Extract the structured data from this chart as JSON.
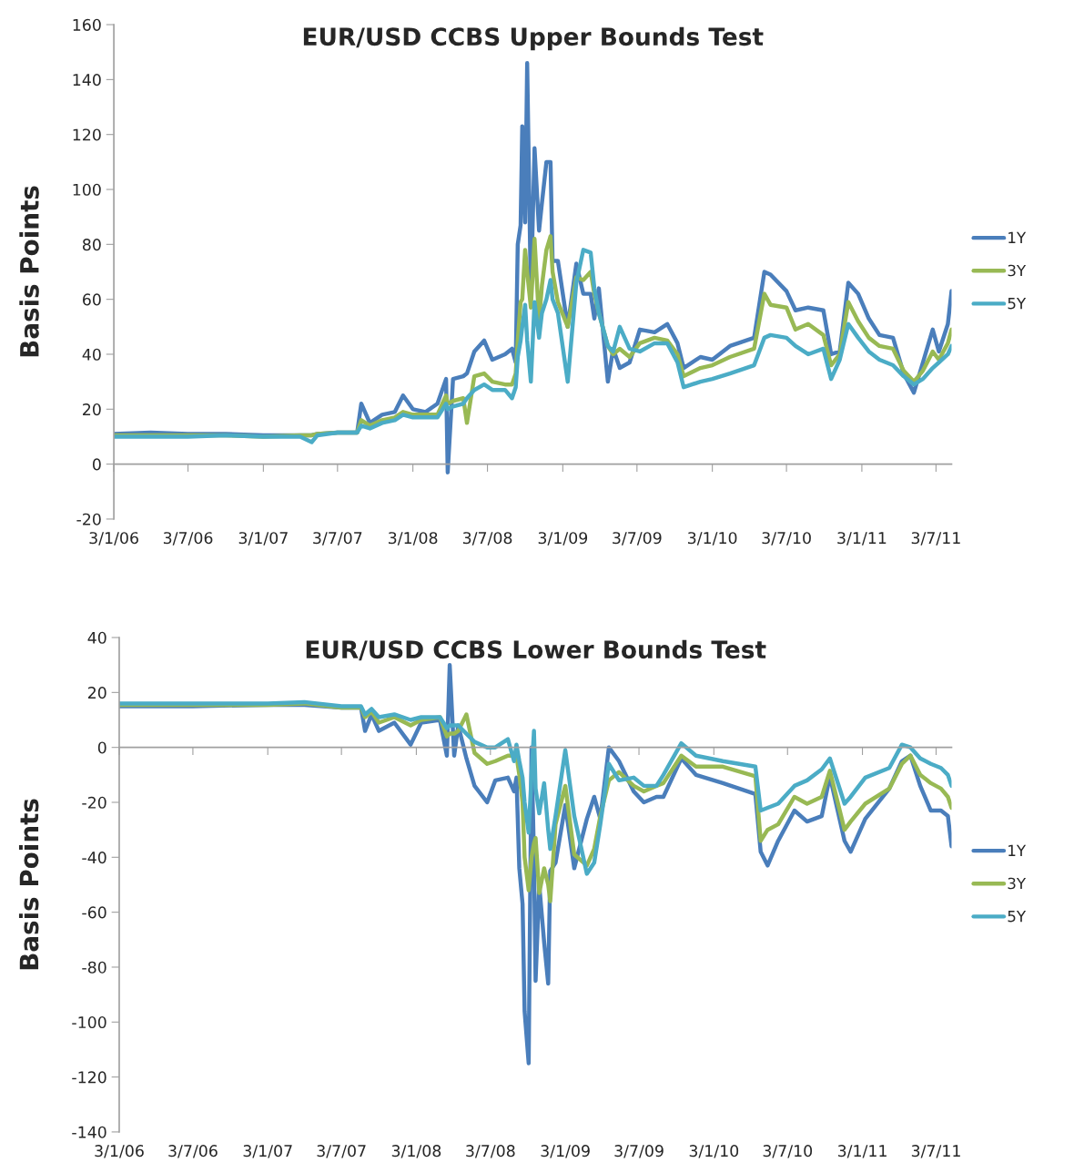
{
  "chart_data": [
    {
      "type": "line",
      "title": "EUR/USD CCBS Upper Bounds Test",
      "ylabel": "Basis Points",
      "legend": "right",
      "x": [
        "2006-01-03",
        "2006-04-03",
        "2006-07-03",
        "2006-10-03",
        "2007-01-03",
        "2007-04-03",
        "2007-05-01",
        "2007-05-15",
        "2007-07-03",
        "2007-08-20",
        "2007-08-30",
        "2007-09-20",
        "2007-10-20",
        "2007-11-20",
        "2007-12-10",
        "2008-01-03",
        "2008-02-03",
        "2008-03-03",
        "2008-03-24",
        "2008-03-28",
        "2008-04-10",
        "2008-05-05",
        "2008-05-14",
        "2008-06-01",
        "2008-06-25",
        "2008-07-15",
        "2008-08-15",
        "2008-09-01",
        "2008-09-10",
        "2008-09-15",
        "2008-09-22",
        "2008-09-26",
        "2008-10-03",
        "2008-10-08",
        "2008-10-17",
        "2008-10-26",
        "2008-11-06",
        "2008-11-13",
        "2008-11-24",
        "2008-12-04",
        "2008-12-09",
        "2008-12-22",
        "2009-01-15",
        "2009-02-05",
        "2009-02-22",
        "2009-03-12",
        "2009-03-21",
        "2009-04-01",
        "2009-04-23",
        "2009-05-06",
        "2009-05-22",
        "2009-06-15",
        "2009-07-10",
        "2009-08-15",
        "2009-09-15",
        "2009-10-10",
        "2009-10-25",
        "2009-12-05",
        "2010-01-03",
        "2010-02-15",
        "2010-04-15",
        "2010-05-10",
        "2010-05-25",
        "2010-07-03",
        "2010-07-25",
        "2010-08-25",
        "2010-10-01",
        "2010-10-20",
        "2010-11-10",
        "2010-12-01",
        "2010-12-25",
        "2011-01-20",
        "2011-02-15",
        "2011-03-20",
        "2011-04-15",
        "2011-05-10",
        "2011-06-01",
        "2011-06-25",
        "2011-07-10",
        "2011-08-01",
        "2011-08-10"
      ],
      "series": [
        {
          "name": "1Y",
          "color": "#4a7ebb",
          "values": [
            11,
            11.5,
            11,
            11,
            10.5,
            10.5,
            10.5,
            11,
            11.5,
            11.5,
            22,
            15,
            18,
            19,
            25,
            20,
            19,
            22,
            31,
            -3,
            31,
            32,
            33,
            41,
            45,
            38,
            40,
            42,
            37,
            80,
            87,
            123,
            88,
            146,
            61,
            115,
            85,
            95,
            110,
            110,
            74,
            74,
            50,
            73,
            62,
            62,
            53,
            64,
            30,
            42,
            35,
            37,
            49,
            48,
            51,
            44,
            35,
            39,
            38,
            43,
            46,
            70,
            69,
            63,
            56,
            57,
            56,
            40,
            41,
            66,
            62,
            53,
            47,
            46,
            33,
            26,
            37,
            49,
            41,
            51,
            63
          ]
        },
        {
          "name": "3Y",
          "color": "#98b954",
          "values": [
            10.5,
            10.5,
            10.5,
            10.5,
            10,
            10.5,
            10.5,
            11,
            11.5,
            11.5,
            16,
            14,
            16,
            17,
            19,
            18,
            18,
            18,
            25,
            22,
            23,
            24,
            15,
            32,
            33,
            30,
            29,
            29,
            33,
            45,
            59,
            60,
            78,
            70,
            57,
            82,
            52,
            65,
            78,
            83,
            70,
            59,
            50,
            68,
            67,
            70,
            62,
            55,
            43,
            40,
            42,
            39,
            44,
            46,
            45,
            40,
            32,
            35,
            36,
            39,
            42,
            62,
            58,
            57,
            49,
            51,
            47,
            36,
            40,
            59,
            52,
            46,
            43,
            42,
            34,
            30,
            34,
            41,
            38,
            44,
            49
          ]
        },
        {
          "name": "5Y",
          "color": "#4bacc6",
          "values": [
            10,
            10,
            10,
            10.5,
            10,
            10,
            8,
            10.5,
            11.5,
            11.5,
            14,
            13,
            15,
            16,
            18,
            17,
            17,
            17,
            22,
            20,
            21,
            22,
            24,
            27,
            29,
            27,
            27,
            24,
            28,
            39,
            45,
            50,
            58,
            45,
            30,
            59,
            46,
            55,
            60,
            67,
            60,
            55,
            30,
            66,
            78,
            77,
            64,
            55,
            43,
            41,
            50,
            42,
            41,
            44,
            44,
            37,
            28,
            30,
            31,
            33,
            36,
            46,
            47,
            46,
            43,
            40,
            42,
            31,
            38,
            51,
            46,
            41,
            38,
            36,
            32,
            29,
            31,
            35,
            37,
            40,
            43
          ]
        }
      ],
      "xlim": [
        "2006-01-03",
        "2011-08-10"
      ],
      "xticks": [
        {
          "value": "2006-01-03",
          "label": "3/1/06"
        },
        {
          "value": "2006-07-03",
          "label": "3/7/06"
        },
        {
          "value": "2007-01-03",
          "label": "3/1/07"
        },
        {
          "value": "2007-07-03",
          "label": "3/7/07"
        },
        {
          "value": "2008-01-03",
          "label": "3/1/08"
        },
        {
          "value": "2008-07-03",
          "label": "3/7/08"
        },
        {
          "value": "2009-01-03",
          "label": "3/1/09"
        },
        {
          "value": "2009-07-03",
          "label": "3/7/09"
        },
        {
          "value": "2010-01-03",
          "label": "3/1/10"
        },
        {
          "value": "2010-07-03",
          "label": "3/7/10"
        },
        {
          "value": "2011-01-03",
          "label": "3/1/11"
        },
        {
          "value": "2011-07-03",
          "label": "3/7/11"
        }
      ],
      "ylim": [
        -20,
        160
      ],
      "yticks": [
        -20,
        0,
        20,
        40,
        60,
        80,
        100,
        120,
        140,
        160
      ]
    },
    {
      "type": "line",
      "title": "EUR/USD CCBS Lower Bounds Test",
      "ylabel": "Basis Points",
      "legend": "right",
      "x": [
        "2006-01-03",
        "2006-07-03",
        "2007-01-03",
        "2007-04-03",
        "2007-07-03",
        "2007-08-20",
        "2007-08-30",
        "2007-09-15",
        "2007-10-03",
        "2007-11-10",
        "2007-12-20",
        "2008-01-15",
        "2008-03-01",
        "2008-03-18",
        "2008-03-25",
        "2008-04-05",
        "2008-04-15",
        "2008-05-05",
        "2008-05-25",
        "2008-06-25",
        "2008-07-15",
        "2008-08-15",
        "2008-08-30",
        "2008-09-05",
        "2008-09-12",
        "2008-09-20",
        "2008-09-25",
        "2008-10-05",
        "2008-10-12",
        "2008-10-18",
        "2008-10-22",
        "2008-10-31",
        "2008-11-12",
        "2008-11-22",
        "2008-11-27",
        "2008-12-10",
        "2009-01-03",
        "2009-01-25",
        "2009-02-25",
        "2009-03-15",
        "2009-03-30",
        "2009-04-20",
        "2009-05-15",
        "2009-06-20",
        "2009-07-15",
        "2009-08-15",
        "2009-09-01",
        "2009-10-15",
        "2009-11-20",
        "2010-01-25",
        "2010-04-15",
        "2010-04-28",
        "2010-05-15",
        "2010-06-10",
        "2010-07-20",
        "2010-08-20",
        "2010-09-25",
        "2010-10-15",
        "2010-11-20",
        "2010-12-05",
        "2011-01-10",
        "2011-03-10",
        "2011-04-10",
        "2011-05-01",
        "2011-05-25",
        "2011-06-20",
        "2011-07-15",
        "2011-08-01",
        "2011-08-10"
      ],
      "series": [
        {
          "name": "1Y",
          "color": "#4a7ebb",
          "values": [
            15,
            15,
            15.5,
            15.5,
            14.5,
            14.5,
            6,
            12,
            6,
            9,
            1,
            9,
            10,
            -3,
            30,
            -3,
            8,
            -4,
            -14,
            -20,
            -12,
            -11,
            -16,
            -11,
            -44,
            -57,
            -96,
            -115,
            0,
            -40,
            -85,
            -50,
            -71,
            -86,
            -45,
            -42,
            -21,
            -44,
            -26,
            -18,
            -26,
            0,
            -5,
            -16,
            -20,
            -18,
            -18,
            -4,
            -10,
            -13,
            -17,
            -38,
            -43,
            -34,
            -23,
            -27,
            -25,
            -10.5,
            -34,
            -38,
            -26,
            -15,
            -5,
            -3,
            -14,
            -23,
            -23,
            -25,
            -36
          ]
        },
        {
          "name": "3Y",
          "color": "#98b954",
          "values": [
            15.5,
            15.5,
            15.5,
            16,
            14.5,
            14.5,
            11,
            13,
            9,
            11,
            8,
            10,
            11,
            4,
            5,
            5,
            6,
            12,
            -2,
            -6,
            -5,
            -3,
            -3,
            -3,
            -10,
            -20,
            -40,
            -52,
            -40,
            -35,
            -33,
            -53,
            -44,
            -50,
            -56,
            -28,
            -14,
            -39,
            -43,
            -37,
            -25,
            -12,
            -9,
            -14,
            -16,
            -14,
            -13,
            -3,
            -7,
            -7,
            -10.5,
            -34,
            -30,
            -28,
            -18,
            -20.5,
            -18,
            -8.5,
            -30,
            -27,
            -20.5,
            -15,
            -6,
            -3,
            -10,
            -13,
            -15,
            -18,
            -22
          ]
        },
        {
          "name": "5Y",
          "color": "#4bacc6",
          "values": [
            16,
            16,
            16,
            16.5,
            15,
            15,
            12,
            14,
            11,
            12,
            10,
            11,
            11,
            7,
            8,
            8,
            8,
            5,
            2,
            0,
            0,
            3,
            -5,
            1,
            -5,
            -11,
            -20,
            -31,
            -10,
            6,
            -15,
            -24,
            -13,
            -30,
            -37,
            -25,
            -1,
            -25,
            -46,
            -42,
            -28,
            -6,
            -12,
            -11,
            -14,
            -14,
            -10,
            1.5,
            -3,
            -5,
            -7,
            -23,
            -22,
            -20.5,
            -14,
            -12,
            -8,
            -4,
            -20.5,
            -18,
            -11,
            -7.5,
            1,
            0,
            -4,
            -6,
            -7.5,
            -10,
            -14
          ]
        }
      ],
      "xlim": [
        "2006-01-03",
        "2011-08-10"
      ],
      "xticks": [
        {
          "value": "2006-01-03",
          "label": "3/1/06"
        },
        {
          "value": "2006-07-03",
          "label": "3/7/06"
        },
        {
          "value": "2007-01-03",
          "label": "3/1/07"
        },
        {
          "value": "2007-07-03",
          "label": "3/7/07"
        },
        {
          "value": "2008-01-03",
          "label": "3/1/08"
        },
        {
          "value": "2008-07-03",
          "label": "3/7/08"
        },
        {
          "value": "2009-01-03",
          "label": "3/1/09"
        },
        {
          "value": "2009-07-03",
          "label": "3/7/09"
        },
        {
          "value": "2010-01-03",
          "label": "3/1/10"
        },
        {
          "value": "2010-07-03",
          "label": "3/7/10"
        },
        {
          "value": "2011-01-03",
          "label": "3/1/11"
        },
        {
          "value": "2011-07-03",
          "label": "3/7/11"
        }
      ],
      "ylim": [
        -140,
        40
      ],
      "yticks": [
        -140,
        -120,
        -100,
        -80,
        -60,
        -40,
        -20,
        0,
        20,
        40
      ]
    }
  ]
}
